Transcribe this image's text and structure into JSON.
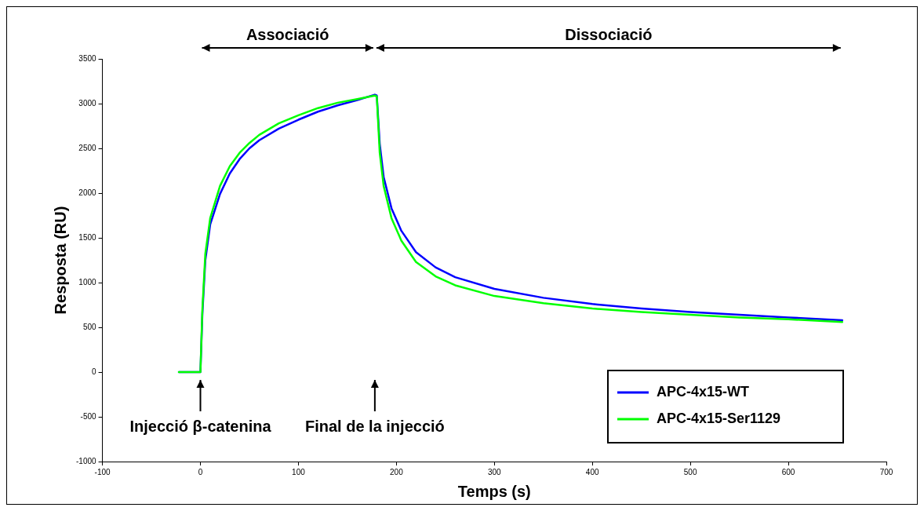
{
  "chart_data": {
    "type": "line",
    "xlabel": "Temps (s)",
    "ylabel": "Resposta (RU)",
    "xlim": [
      -100,
      700
    ],
    "xticks": [
      -100,
      0,
      100,
      200,
      300,
      400,
      500,
      600,
      700
    ],
    "ylim": [
      -1000,
      3500
    ],
    "yticks": [
      -1000,
      -500,
      0,
      500,
      1000,
      1500,
      2000,
      2500,
      3000,
      3500
    ],
    "grid": false,
    "legend": "bottom right",
    "marker": "none",
    "line_style": "solid",
    "series": [
      {
        "name": "APC-4x15-WT",
        "color": "#0000ff",
        "x": [
          -22,
          0,
          2,
          5,
          10,
          20,
          30,
          40,
          50,
          60,
          80,
          100,
          120,
          140,
          160,
          178,
          180,
          183,
          187,
          195,
          205,
          220,
          240,
          260,
          300,
          350,
          400,
          450,
          500,
          550,
          600,
          655
        ],
        "values": [
          0,
          0,
          650,
          1250,
          1650,
          1990,
          2220,
          2380,
          2500,
          2590,
          2720,
          2820,
          2910,
          2980,
          3040,
          3100,
          3090,
          2550,
          2180,
          1830,
          1580,
          1340,
          1170,
          1060,
          930,
          830,
          760,
          710,
          670,
          640,
          610,
          580
        ]
      },
      {
        "name": "APC-4x15-Ser1129",
        "color": "#00ff00",
        "x": [
          -22,
          0,
          2,
          5,
          10,
          20,
          30,
          40,
          50,
          60,
          80,
          100,
          120,
          140,
          160,
          178,
          180,
          183,
          187,
          195,
          205,
          220,
          240,
          260,
          300,
          350,
          400,
          450,
          500,
          550,
          600,
          655
        ],
        "values": [
          0,
          0,
          700,
          1320,
          1720,
          2080,
          2300,
          2450,
          2560,
          2650,
          2780,
          2870,
          2950,
          3010,
          3050,
          3090,
          3080,
          2450,
          2080,
          1720,
          1470,
          1230,
          1070,
          970,
          850,
          770,
          710,
          670,
          640,
          610,
          590,
          560
        ]
      }
    ],
    "annotations": [
      "Associació",
      "Dissociació",
      "Injecció β-catenina",
      "Final de la injecció"
    ]
  }
}
